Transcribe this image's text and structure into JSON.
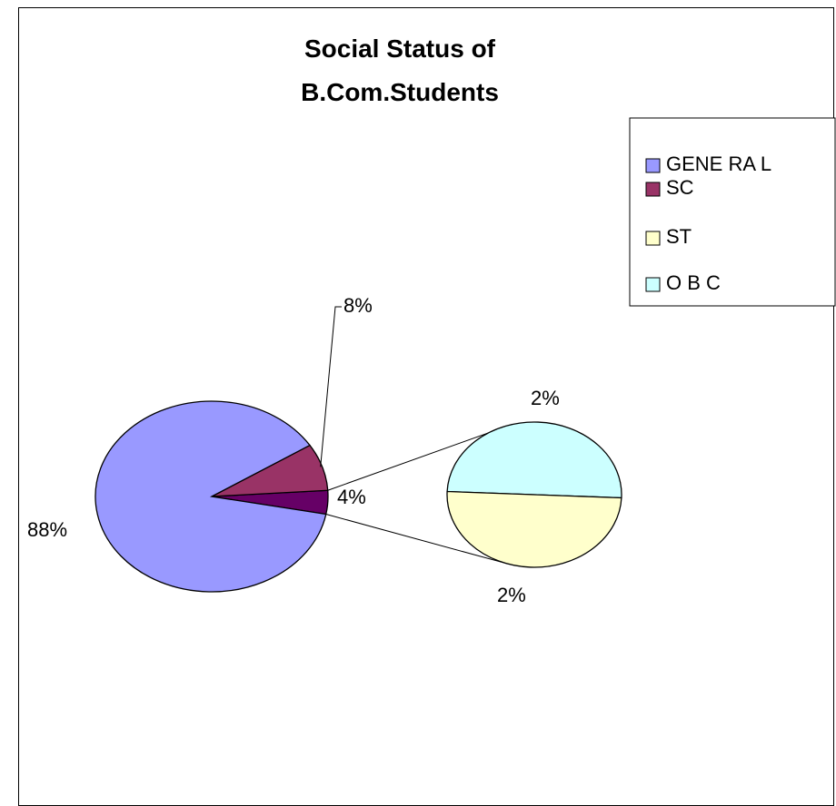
{
  "chart_data": {
    "type": "pie",
    "subtype": "pie-of-pie",
    "title_lines": [
      "Social Status of",
      "B.Com.Students"
    ],
    "categories": [
      "GENERAL",
      "SC",
      "ST",
      "OBC"
    ],
    "values": [
      88,
      8,
      2,
      2
    ],
    "unit": "%",
    "data_labels": [
      "88%",
      "8%",
      "2%",
      "2%"
    ],
    "other_label": "4%",
    "secondary_pie_categories": [
      "ST",
      "OBC"
    ],
    "colors": {
      "GENERAL": "#9999ff",
      "SC": "#993366",
      "ST": "#ffffcc",
      "OBC": "#ccffff",
      "other": "#660066"
    },
    "legend": {
      "position": "top-right",
      "entries": [
        "GENERAL",
        "SC",
        "ST",
        "OBC"
      ],
      "display_labels": [
        "GENE RA L",
        "SC",
        "ST",
        "O B C"
      ]
    }
  }
}
